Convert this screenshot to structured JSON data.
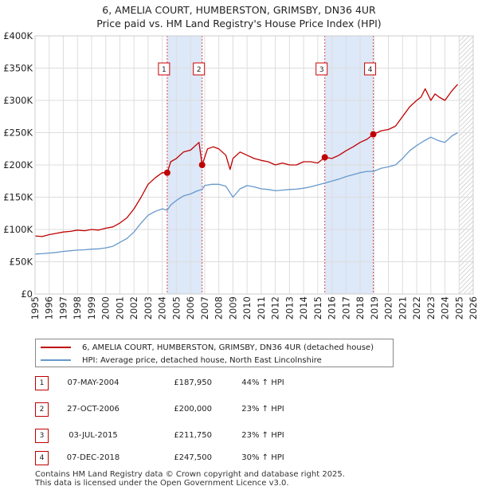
{
  "title_line1": "6, AMELIA COURT, HUMBERSTON, GRIMSBY, DN36 4UR",
  "title_line2": "Price paid vs. HM Land Registry's House Price Index (HPI)",
  "colors": {
    "property": "#c00000",
    "hpi": "#6699cc",
    "shade": "#dde8f8",
    "grid": "#dddddd",
    "vline": "#cc0000"
  },
  "chart_data": {
    "type": "line",
    "title": "6, AMELIA COURT, HUMBERSTON, GRIMSBY, DN36 4UR",
    "subtitle": "Price paid vs. HM Land Registry's House Price Index (HPI)",
    "xlabel": "",
    "ylabel": "",
    "xlim": [
      1995,
      2026
    ],
    "ylim": [
      0,
      400000
    ],
    "grid": true,
    "x_ticks": [
      "1995",
      "1996",
      "1997",
      "1998",
      "1999",
      "2000",
      "2001",
      "2002",
      "2003",
      "2004",
      "2005",
      "2006",
      "2007",
      "2008",
      "2009",
      "2010",
      "2011",
      "2012",
      "2013",
      "2014",
      "2015",
      "2016",
      "2017",
      "2018",
      "2019",
      "2020",
      "2021",
      "2022",
      "2023",
      "2024",
      "2025",
      "2026"
    ],
    "y_ticks": [
      {
        "value": 0,
        "label": "£0"
      },
      {
        "value": 50000,
        "label": "£50K"
      },
      {
        "value": 100000,
        "label": "£100K"
      },
      {
        "value": 150000,
        "label": "£150K"
      },
      {
        "value": 200000,
        "label": "£200K"
      },
      {
        "value": 250000,
        "label": "£250K"
      },
      {
        "value": 300000,
        "label": "£300K"
      },
      {
        "value": 350000,
        "label": "£350K"
      },
      {
        "value": 400000,
        "label": "£400K"
      }
    ],
    "legend_position": "below",
    "series": [
      {
        "name": "6, AMELIA COURT, HUMBERSTON, GRIMSBY, DN36 4UR (detached house)",
        "color": "#c00000",
        "x": [
          1995.0,
          1995.5,
          1996.0,
          1996.5,
          1997.0,
          1997.5,
          1998.0,
          1998.5,
          1999.0,
          1999.5,
          2000.0,
          2000.5,
          2001.0,
          2001.5,
          2002.0,
          2002.5,
          2003.0,
          2003.5,
          2004.0,
          2004.35,
          2004.6,
          2005.0,
          2005.5,
          2006.0,
          2006.6,
          2006.82,
          2007.2,
          2007.6,
          2008.0,
          2008.5,
          2008.8,
          2009.0,
          2009.5,
          2010.0,
          2010.5,
          2011.0,
          2011.5,
          2012.0,
          2012.5,
          2013.0,
          2013.5,
          2014.0,
          2014.5,
          2015.0,
          2015.5,
          2016.0,
          2016.5,
          2017.0,
          2017.5,
          2018.0,
          2018.5,
          2018.93,
          2019.5,
          2020.0,
          2020.5,
          2021.0,
          2021.5,
          2022.0,
          2022.3,
          2022.6,
          2023.0,
          2023.3,
          2023.6,
          2024.0,
          2024.5,
          2024.9
        ],
        "values": [
          90000,
          89000,
          92000,
          94000,
          96000,
          97000,
          99000,
          98000,
          100000,
          99000,
          102000,
          104000,
          110000,
          118000,
          132000,
          150000,
          170000,
          180000,
          188000,
          187950,
          205000,
          210000,
          220000,
          223000,
          235000,
          200000,
          225000,
          228000,
          225000,
          215000,
          193000,
          210000,
          220000,
          215000,
          210000,
          207000,
          205000,
          200000,
          203000,
          200000,
          200000,
          205000,
          205000,
          203000,
          211750,
          210000,
          215000,
          222000,
          228000,
          235000,
          240000,
          247500,
          253000,
          255000,
          260000,
          275000,
          290000,
          300000,
          305000,
          318000,
          300000,
          310000,
          305000,
          300000,
          315000,
          325000
        ]
      },
      {
        "name": "HPI: Average price, detached house, North East Lincolnshire",
        "color": "#6699cc",
        "x": [
          1995.0,
          1995.5,
          1996.0,
          1996.5,
          1997.0,
          1997.5,
          1998.0,
          1998.5,
          1999.0,
          1999.5,
          2000.0,
          2000.5,
          2001.0,
          2001.5,
          2002.0,
          2002.5,
          2003.0,
          2003.5,
          2004.0,
          2004.35,
          2004.6,
          2005.0,
          2005.5,
          2006.0,
          2006.5,
          2006.82,
          2007.0,
          2007.5,
          2008.0,
          2008.5,
          2009.0,
          2009.5,
          2010.0,
          2010.5,
          2011.0,
          2011.5,
          2012.0,
          2012.5,
          2013.0,
          2013.5,
          2014.0,
          2014.5,
          2015.0,
          2015.5,
          2016.0,
          2016.5,
          2017.0,
          2017.5,
          2018.0,
          2018.5,
          2018.93,
          2019.5,
          2020.0,
          2020.5,
          2021.0,
          2021.5,
          2022.0,
          2022.5,
          2023.0,
          2023.5,
          2024.0,
          2024.5,
          2024.9
        ],
        "values": [
          62000,
          62500,
          63500,
          64500,
          66000,
          67000,
          68000,
          68500,
          69500,
          70000,
          71500,
          74000,
          80000,
          86000,
          96000,
          110000,
          122000,
          128000,
          132000,
          130000,
          138000,
          145000,
          152000,
          155000,
          160000,
          162000,
          168000,
          170000,
          170000,
          167000,
          150000,
          163000,
          168000,
          166000,
          163000,
          162000,
          160000,
          161000,
          162000,
          162500,
          164000,
          166000,
          169000,
          172000,
          175000,
          178000,
          182000,
          185000,
          188000,
          190000,
          190000,
          195000,
          197000,
          200000,
          210000,
          222000,
          230000,
          237000,
          243000,
          238000,
          235000,
          245000,
          250000
        ]
      }
    ],
    "sales": [
      {
        "num": "1",
        "x": 2004.35,
        "value": 187950,
        "date": "07-MAY-2004",
        "price": "£187,950",
        "hpi": "44% ↑ HPI"
      },
      {
        "num": "2",
        "x": 2006.82,
        "value": 200000,
        "date": "27-OCT-2006",
        "price": "£200,000",
        "hpi": "23% ↑ HPI"
      },
      {
        "num": "3",
        "x": 2015.5,
        "value": 211750,
        "date": "03-JUL-2015",
        "price": "£211,750",
        "hpi": "23% ↑ HPI"
      },
      {
        "num": "4",
        "x": 2018.93,
        "value": 247500,
        "date": "07-DEC-2018",
        "price": "£247,500",
        "hpi": "30% ↑ HPI"
      }
    ],
    "shaded_ranges": [
      [
        2004.35,
        2006.82
      ],
      [
        2015.5,
        2018.93
      ]
    ],
    "hatched_from": 2025.0
  },
  "legend": {
    "property_label": "6, AMELIA COURT, HUMBERSTON, GRIMSBY, DN36 4UR (detached house)",
    "hpi_label": "HPI: Average price, detached house, North East Lincolnshire"
  },
  "footer": {
    "line1": "Contains HM Land Registry data © Crown copyright and database right 2025.",
    "line2": "This data is licensed under the Open Government Licence v3.0."
  }
}
